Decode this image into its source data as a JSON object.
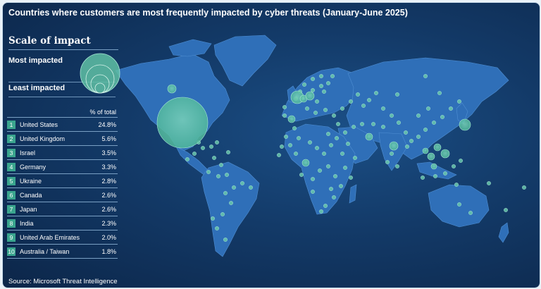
{
  "title": "Countries where customers are most frequently impacted by cyber threats  (January-June 2025)",
  "legend": {
    "scale_title": "Scale of impact",
    "most": "Most impacted",
    "least": "Least impacted"
  },
  "table": {
    "header": "% of total",
    "rows": [
      {
        "rank": "1",
        "country": "United States",
        "pct": "24.8%"
      },
      {
        "rank": "2",
        "country": "United Kingdom",
        "pct": "5.6%"
      },
      {
        "rank": "3",
        "country": "Israel",
        "pct": "3.5%"
      },
      {
        "rank": "4",
        "country": "Germany",
        "pct": "3.3%"
      },
      {
        "rank": "5",
        "country": "Ukraine",
        "pct": "2.8%"
      },
      {
        "rank": "6",
        "country": "Canada",
        "pct": "2.6%"
      },
      {
        "rank": "7",
        "country": "Japan",
        "pct": "2.6%"
      },
      {
        "rank": "8",
        "country": "India",
        "pct": "2.3%"
      },
      {
        "rank": "9",
        "country": "United Arab Emirates",
        "pct": "2.0%"
      },
      {
        "rank": "10",
        "country": "Australia / Taiwan",
        "pct": "1.8%"
      }
    ]
  },
  "source": "Source: Microsoft Threat Intelligence",
  "colors": {
    "land": "#2f6fb8",
    "ocean": "#133a68",
    "bubble_fill": "#5fc0a5",
    "bubble_stroke": "#9ee2cf",
    "rank_badge": "#3aa58e"
  }
}
